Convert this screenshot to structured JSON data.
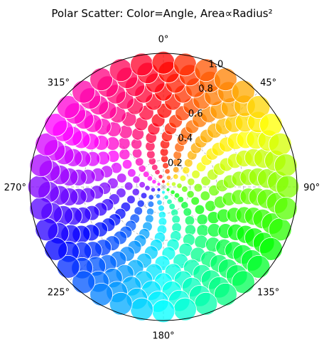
{
  "chart_data": {
    "type": "scatter",
    "projection": "polar",
    "title": "Polar Scatter: Color=Angle, Area∝Radius²",
    "theta_zero_location": "N",
    "theta_direction": "clockwise",
    "theta_tick_labels": [
      "0°",
      "45°",
      "90°",
      "135°",
      "180°",
      "225°",
      "270°",
      "315°"
    ],
    "r_tick_labels": [
      "0.2",
      "0.4",
      "0.6",
      "0.8",
      "1.0"
    ],
    "r_ticks": [
      0.2,
      0.4,
      0.6,
      0.8,
      1.0
    ],
    "rlim": [
      0,
      1.0
    ],
    "grid": true,
    "color_mapping": "hue by angle (0° red, 90° yellow-green, 180° cyan, 270° blue-violet)",
    "size_mapping": "marker area proportional to radius squared",
    "marker_alpha": 0.75,
    "marker_edgecolor": "#ffffff",
    "rings": [
      0.04,
      0.08,
      0.12,
      0.16,
      0.21,
      0.26,
      0.32,
      0.38,
      0.44,
      0.5,
      0.57,
      0.64,
      0.71,
      0.78,
      0.86,
      0.93
    ],
    "points_per_ring": [
      6,
      8,
      10,
      12,
      14,
      16,
      18,
      20,
      22,
      24,
      26,
      28,
      30,
      32,
      34,
      36
    ],
    "points_example": [
      {
        "theta_deg": 0,
        "r": 0.93
      },
      {
        "theta_deg": 45,
        "r": 0.93
      },
      {
        "theta_deg": 90,
        "r": 0.5
      },
      {
        "theta_deg": 135,
        "r": 0.86
      },
      {
        "theta_deg": 180,
        "r": 0.93
      },
      {
        "theta_deg": 225,
        "r": 0.93
      },
      {
        "theta_deg": 270,
        "r": 0.93
      },
      {
        "theta_deg": 315,
        "r": 0.86
      }
    ]
  }
}
